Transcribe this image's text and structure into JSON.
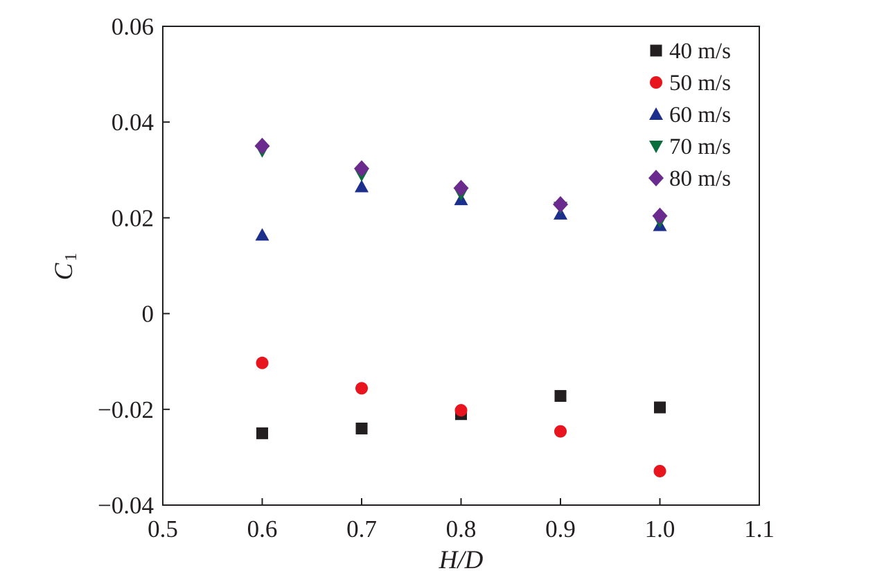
{
  "chart_data": {
    "type": "scatter",
    "title": "",
    "xlabel": "H/D",
    "ylabel": {
      "main": "C",
      "sub": "1"
    },
    "xlim": [
      0.5,
      1.1
    ],
    "ylim": [
      -0.04,
      0.06
    ],
    "xticks": [
      0.5,
      0.6,
      0.7,
      0.8,
      0.9,
      1.0,
      1.1
    ],
    "xtick_labels": [
      "0.5",
      "0.6",
      "0.7",
      "0.8",
      "0.9",
      "1.0",
      "1.1"
    ],
    "yticks": [
      -0.04,
      -0.02,
      0,
      0.02,
      0.04,
      0.06
    ],
    "ytick_labels": [
      "−0.04",
      "−0.02",
      "0",
      "0.02",
      "0.04",
      "0.06"
    ],
    "grid": false,
    "legend_position": "top-right",
    "series": [
      {
        "name": "40 m/s",
        "marker": "square",
        "color": "#231f20",
        "x": [
          0.6,
          0.7,
          0.8,
          0.9,
          1.0
        ],
        "y": [
          -0.025,
          -0.024,
          -0.021,
          -0.0172,
          -0.0196
        ]
      },
      {
        "name": "50 m/s",
        "marker": "circle",
        "color": "#e8141e",
        "x": [
          0.6,
          0.7,
          0.8,
          0.9,
          1.0
        ],
        "y": [
          -0.0103,
          -0.0156,
          -0.0202,
          -0.0246,
          -0.0329
        ]
      },
      {
        "name": "60 m/s",
        "marker": "triangle-up",
        "color": "#1c2f8c",
        "x": [
          0.6,
          0.7,
          0.8,
          0.9,
          1.0
        ],
        "y": [
          0.0164,
          0.0265,
          0.0238,
          0.0208,
          0.0184
        ]
      },
      {
        "name": "70 m/s",
        "marker": "triangle-down",
        "color": "#0a6e3c",
        "x": [
          0.6,
          0.7,
          0.8,
          0.9,
          1.0
        ],
        "y": [
          0.034,
          0.029,
          0.025,
          0.0222,
          0.0193
        ]
      },
      {
        "name": "80 m/s",
        "marker": "diamond",
        "color": "#6a2a8e",
        "x": [
          0.6,
          0.7,
          0.8,
          0.9,
          1.0
        ],
        "y": [
          0.035,
          0.0303,
          0.0262,
          0.0228,
          0.0204
        ]
      }
    ]
  }
}
